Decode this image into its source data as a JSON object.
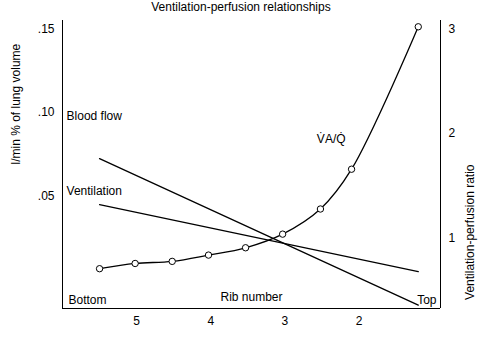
{
  "chart_data": {
    "type": "line",
    "title": "Ventilation-perfusion relationships",
    "x_label": "Rib number",
    "y_label": "l/min % of lung volume",
    "y2_label": "Ventilation-perfusion ratio",
    "annotations": [
      "Bottom",
      "Top"
    ],
    "xlim": [
      6,
      0.9
    ],
    "xticks": [
      5,
      4,
      3,
      2
    ],
    "ylim": [
      -0.017,
      0.155
    ],
    "yticks": [
      {
        "value": 0.05,
        "label": ".05"
      },
      {
        "value": 0.1,
        "label": ".10"
      },
      {
        "value": 0.15,
        "label": ".15"
      }
    ],
    "y2lim": [
      0.33,
      3.08
    ],
    "y2ticks": [
      1,
      2,
      3
    ],
    "grid": false,
    "series": [
      {
        "name": "Blood flow",
        "color": "#000000",
        "x": [
          5.5,
          1.2
        ],
        "values": [
          0.0725,
          -0.015
        ]
      },
      {
        "name": "Ventilation",
        "color": "#000000",
        "x": [
          5.5,
          1.2
        ],
        "values": [
          0.045,
          0.005
        ]
      },
      {
        "name": "V̇A/Q̇",
        "color": "#000000",
        "axis": "y2",
        "marker": "circle",
        "x": [
          5.5,
          5.02,
          4.52,
          4.03,
          3.53,
          3.03,
          2.52,
          2.1,
          1.2
        ],
        "values": [
          0.71,
          0.76,
          0.78,
          0.84,
          0.91,
          1.04,
          1.28,
          1.66,
          3.02
        ]
      }
    ]
  }
}
